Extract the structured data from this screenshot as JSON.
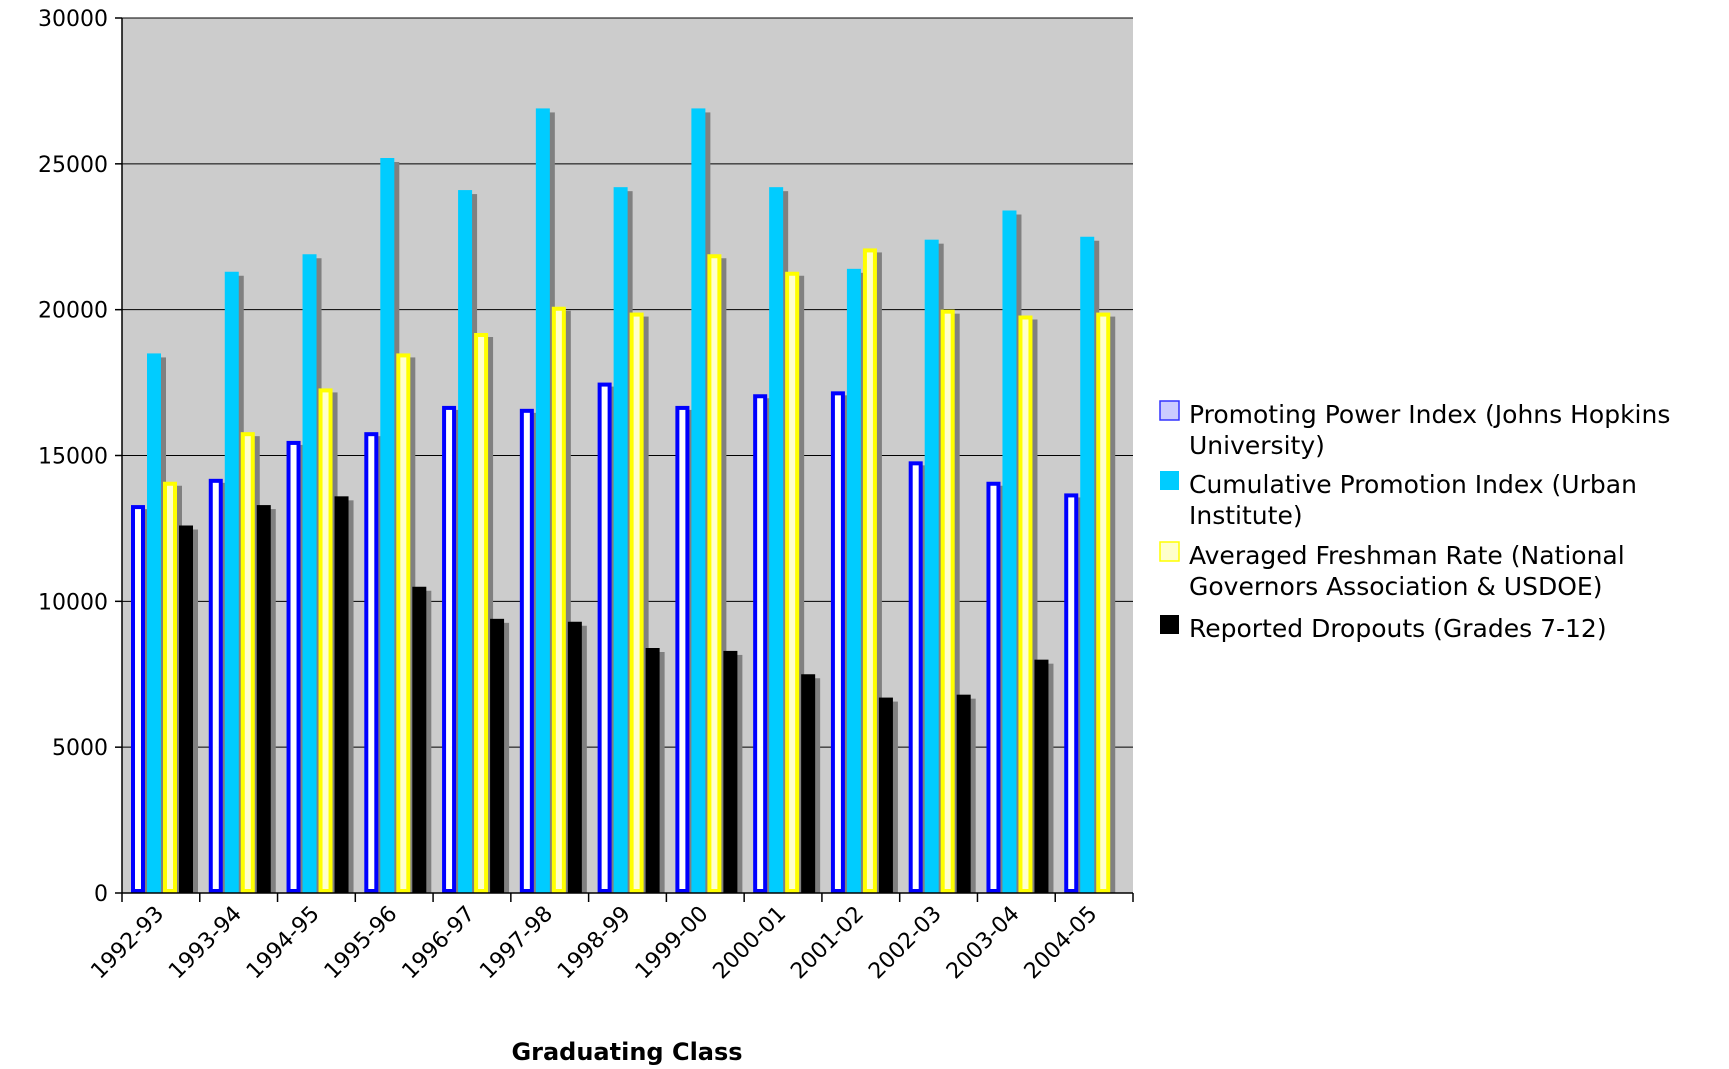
{
  "chart_data": {
    "type": "bar",
    "title": "",
    "xlabel": "Graduating Class",
    "ylabel": "",
    "ylim": [
      0,
      30000
    ],
    "yticks": [
      0,
      5000,
      10000,
      15000,
      20000,
      25000,
      30000
    ],
    "grid": true,
    "legend_position": "right",
    "categories": [
      "1992-93",
      "1993-94",
      "1994-95",
      "1995-96",
      "1996-97",
      "1997-98",
      "1998-99",
      "1999-00",
      "2000-01",
      "2001-02",
      "2002-03",
      "2003-04",
      "2004-05"
    ],
    "series": [
      {
        "name": "Promoting Power Index (Johns Hopkins University)",
        "legend_lines": [
          "Promoting Power Index (Johns Hopkins",
          "University)"
        ],
        "style": "outline",
        "fill": "#ffffff",
        "stroke": "#0000ff",
        "values": [
          13300,
          14200,
          15500,
          15800,
          16700,
          16600,
          17500,
          16700,
          17100,
          17200,
          14800,
          14100,
          13700
        ]
      },
      {
        "name": "Cumulative Promotion Index (Urban Institute)",
        "legend_lines": [
          "Cumulative Promotion Index (Urban",
          "Institute)"
        ],
        "style": "solid",
        "fill": "#00ccff",
        "stroke": "#00ccff",
        "values": [
          18500,
          21300,
          21900,
          25200,
          24100,
          26900,
          24200,
          26900,
          24200,
          21400,
          22400,
          23400,
          22500
        ]
      },
      {
        "name": "Averaged Freshman Rate (National Governors Association & USDOE)",
        "legend_lines": [
          "Averaged Freshman Rate (National",
          "Governors Association & USDOE)"
        ],
        "style": "outline",
        "fill": "#ffffcc",
        "stroke": "#ffff00",
        "values": [
          14100,
          15800,
          17300,
          18500,
          19200,
          20100,
          19900,
          21900,
          21300,
          22100,
          20000,
          19800,
          19900
        ]
      },
      {
        "name": "Reported Dropouts (Grades 7-12)",
        "legend_lines": [
          "Reported Dropouts (Grades 7-12)"
        ],
        "style": "solid",
        "fill": "#000000",
        "stroke": "#000000",
        "values": [
          12600,
          13300,
          13600,
          10500,
          9400,
          9300,
          8400,
          8300,
          7500,
          6700,
          6800,
          8000,
          null
        ]
      }
    ],
    "colors": {
      "plot_background": "#cccccc",
      "gridline": "#000000",
      "shadow": "#808080",
      "legend_swatch_ppi": "#ccccff"
    }
  }
}
